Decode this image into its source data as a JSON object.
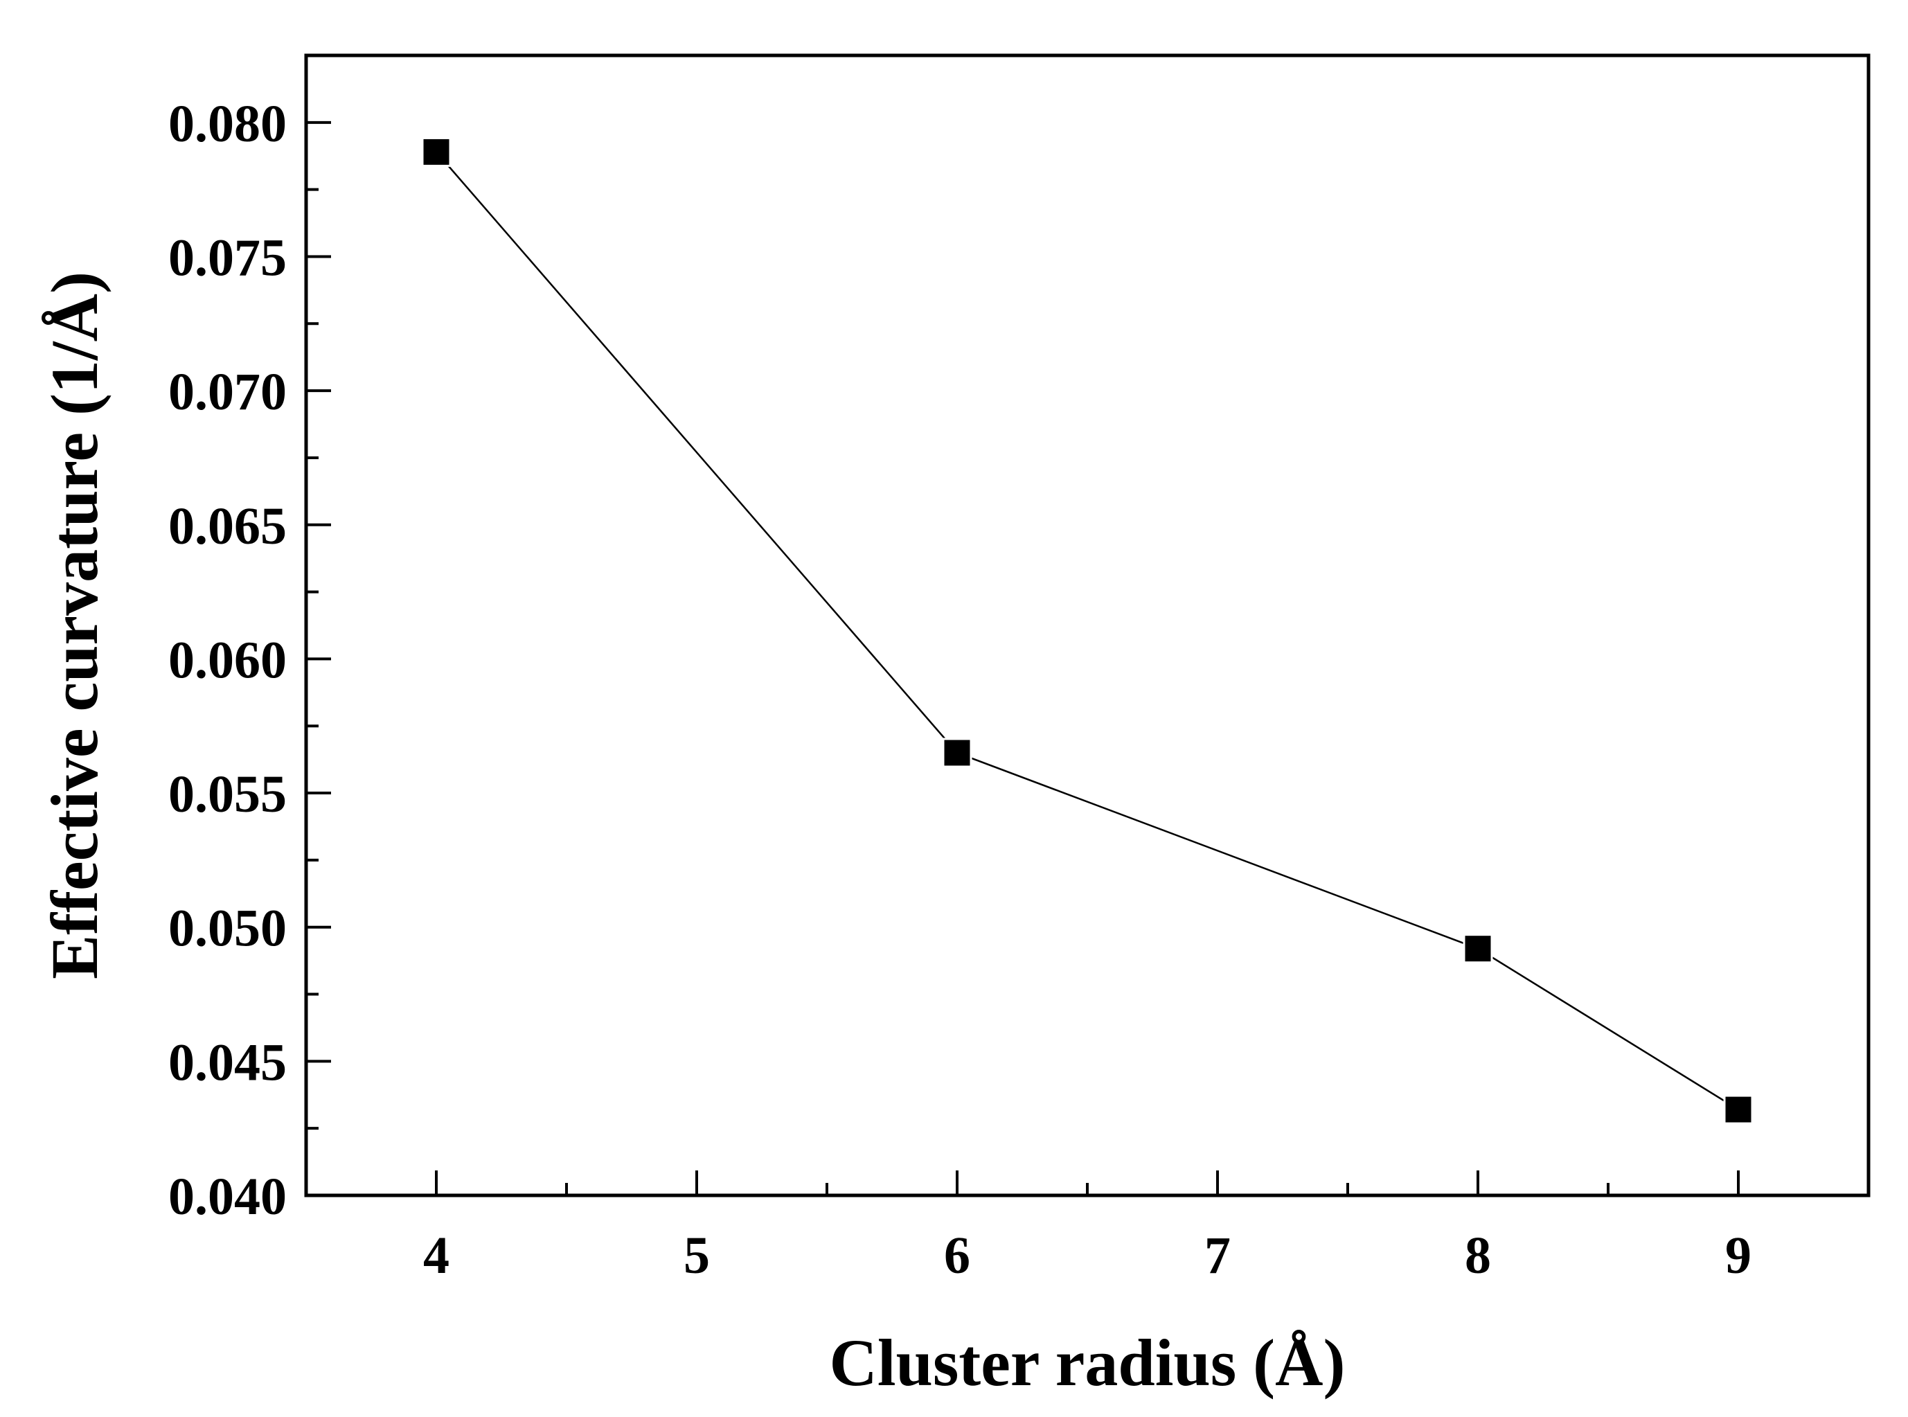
{
  "chart_data": {
    "type": "line",
    "title": "",
    "xlabel": "Cluster radius (Å)",
    "ylabel": "Effective curvature (1/Å)",
    "x": [
      4,
      6,
      8,
      9
    ],
    "series": [
      {
        "values": [
          0.0789,
          0.0565,
          0.0492,
          0.0432
        ],
        "marker": "square",
        "color": "#000000"
      }
    ],
    "xlim": [
      3.5,
      9.5
    ],
    "ylim": [
      0.04,
      0.0825
    ],
    "xticks": [
      4,
      5,
      6,
      7,
      8,
      9
    ],
    "xtick_labels": [
      "4",
      "5",
      "6",
      "7",
      "8",
      "9"
    ],
    "yticks": [
      0.04,
      0.045,
      0.05,
      0.055,
      0.06,
      0.065,
      0.07,
      0.075,
      0.08
    ],
    "ytick_labels": [
      "0.040",
      "0.045",
      "0.050",
      "0.055",
      "0.060",
      "0.065",
      "0.070",
      "0.075",
      "0.080"
    ],
    "grid": false,
    "legend": "none"
  }
}
